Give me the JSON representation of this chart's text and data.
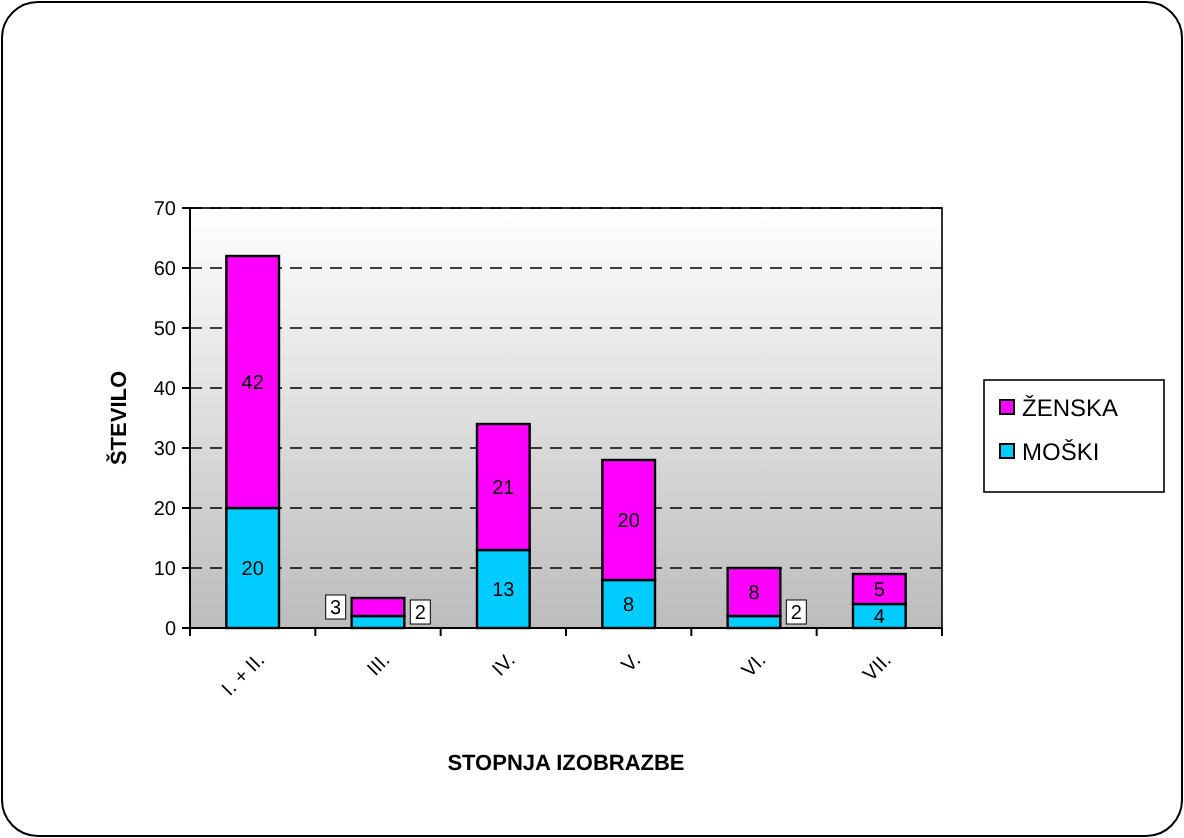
{
  "chart_data": {
    "type": "bar",
    "stacked": true,
    "xlabel": "STOPNJA IZOBRAZBE",
    "ylabel": "ŠTEVILO",
    "categories": [
      "I. + II.",
      "III.",
      "IV.",
      "V.",
      "VI.",
      "VII."
    ],
    "series": [
      {
        "name": "MOŠKI",
        "color": "#00ccff",
        "values": [
          20,
          2,
          13,
          8,
          2,
          4
        ]
      },
      {
        "name": "ŽENSKA",
        "color": "#ff00ff",
        "values": [
          42,
          3,
          21,
          20,
          8,
          5
        ]
      }
    ],
    "ylim": [
      0,
      70
    ],
    "yticks": [
      0,
      10,
      20,
      30,
      40,
      50,
      60,
      70
    ],
    "grid": "y",
    "legend": "right",
    "data_labels": true
  }
}
